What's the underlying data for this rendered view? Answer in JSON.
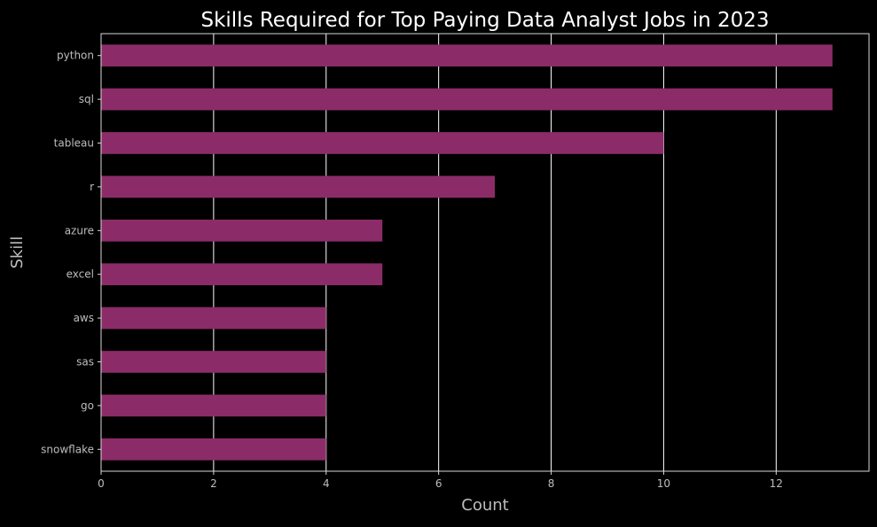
{
  "chart_data": {
    "type": "bar",
    "orientation": "horizontal",
    "title": "Skills Required for Top Paying Data Analyst Jobs in 2023",
    "xlabel": "Count",
    "ylabel": "Skill",
    "categories": [
      "python",
      "sql",
      "tableau",
      "r",
      "azure",
      "excel",
      "aws",
      "sas",
      "go",
      "snowflake"
    ],
    "values": [
      13,
      13,
      10,
      7,
      5,
      5,
      4,
      4,
      4,
      4
    ],
    "x_ticks": [
      0,
      2,
      4,
      6,
      8,
      10,
      12
    ],
    "xlim": [
      0,
      13.65
    ],
    "grid": "vertical",
    "legend": "none",
    "colors": {
      "background": "#000000",
      "bar": "#8b2c68",
      "grid": "#ffffff",
      "axis": "#d9d9d9",
      "tick_text": "#bdbdbd",
      "title_text": "#ffffff"
    }
  }
}
